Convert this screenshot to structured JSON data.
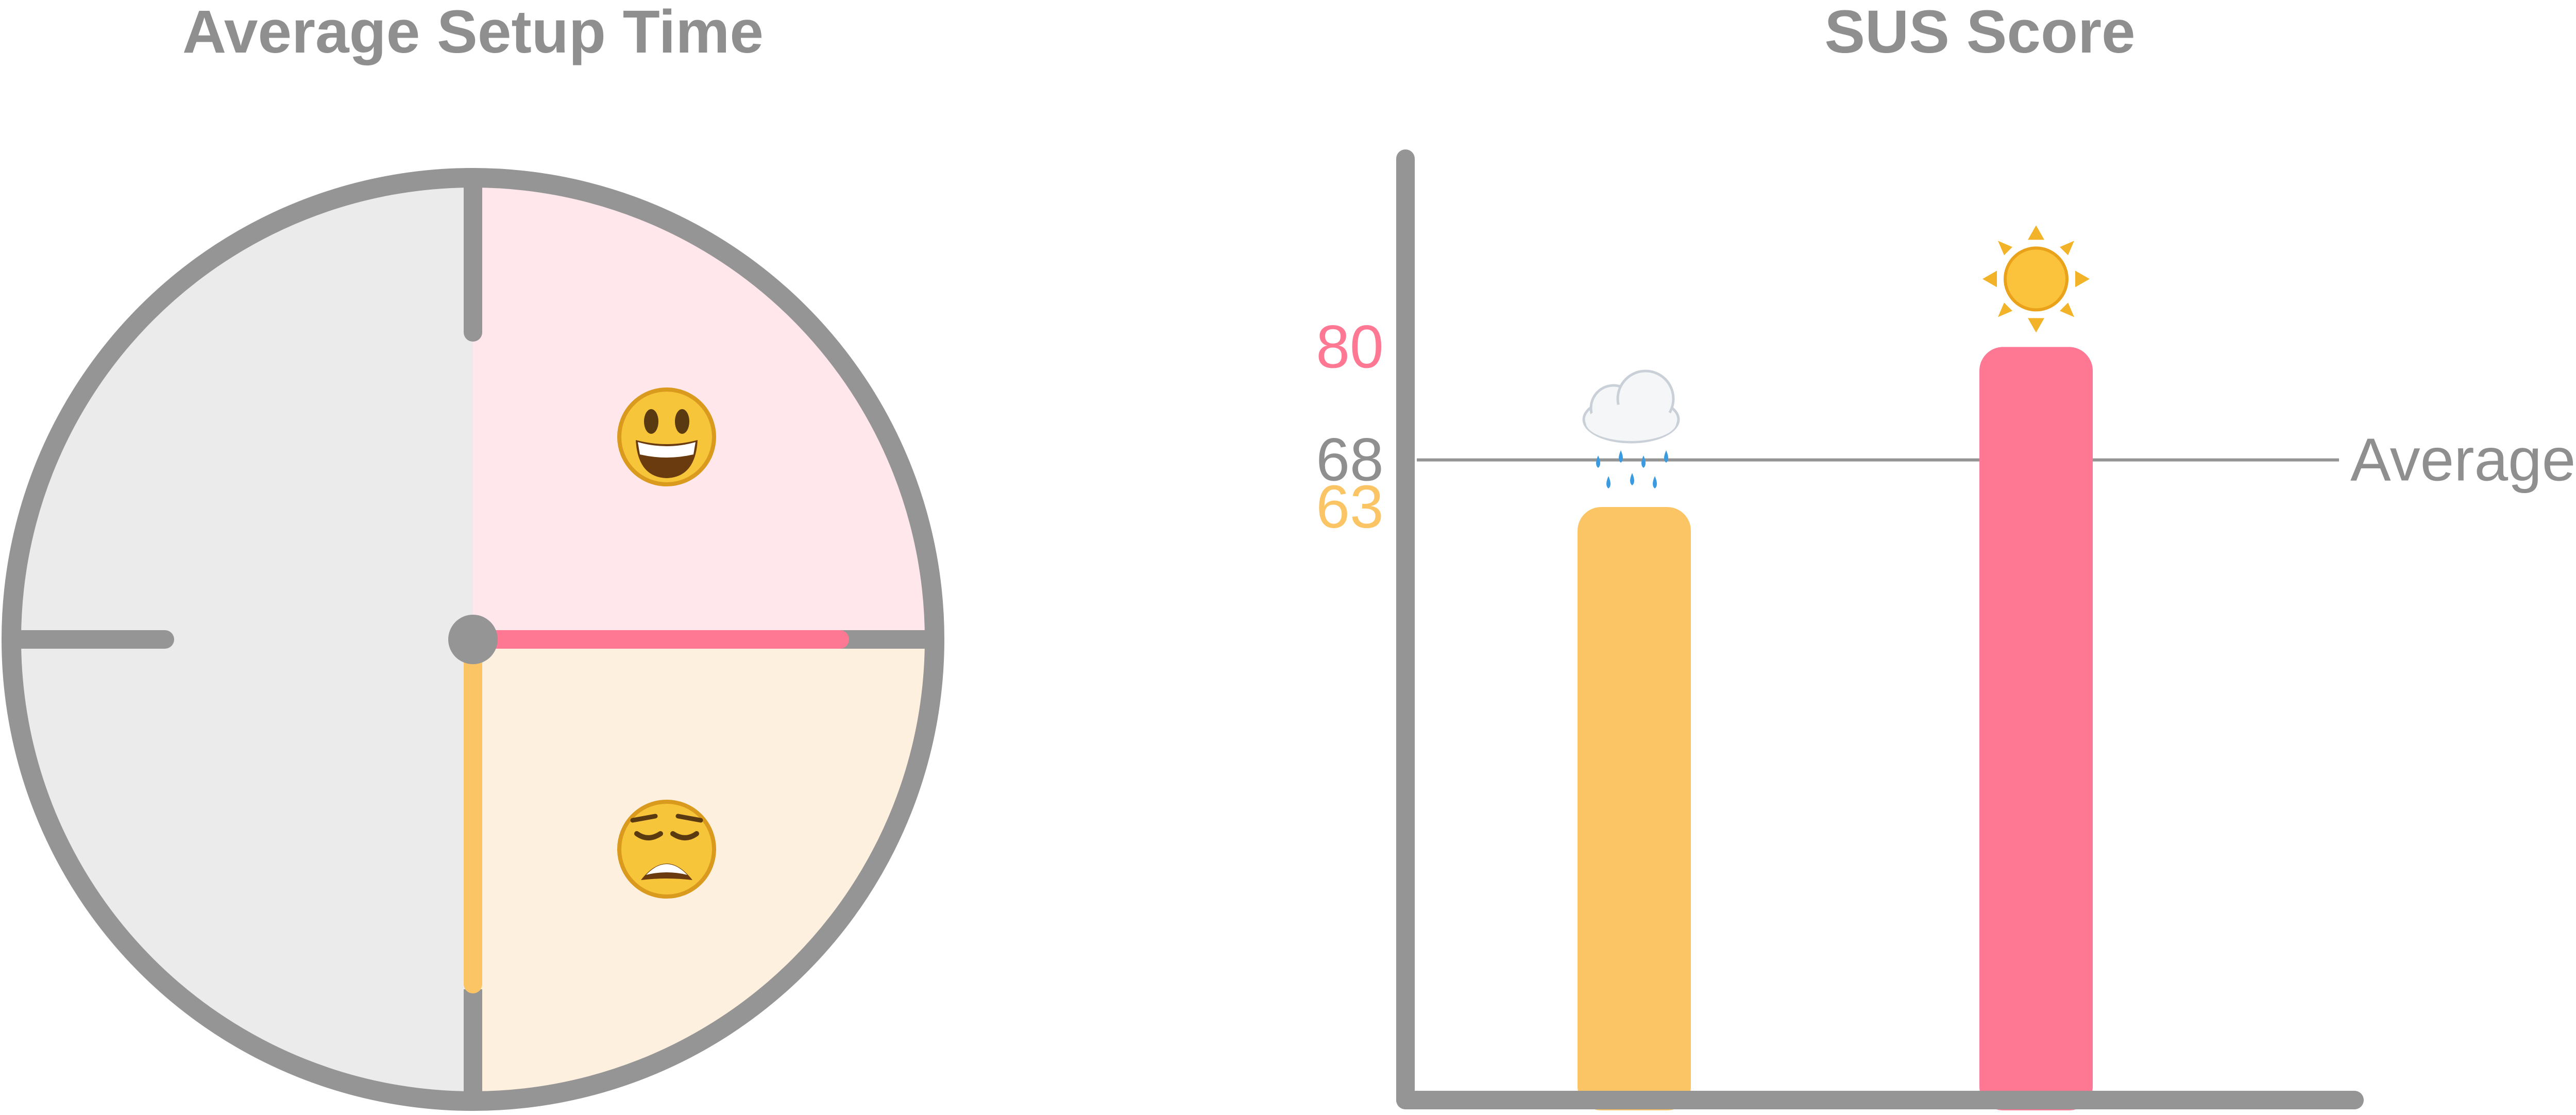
{
  "colors": {
    "axis": "#959595",
    "pink": "#fe7894",
    "orange": "#fbc565",
    "pink_bg": "#ffe7ec",
    "orange_bg": "#fef0df",
    "gray_bg": "#ebebeb",
    "text": "#8f8f8f"
  },
  "chart_data": [
    {
      "type": "pie",
      "title": "Average Setup Time",
      "segments": [
        {
          "value": 25,
          "color": "#ffe7ec",
          "icon": "grinning-face-icon",
          "emoji": "😃"
        },
        {
          "value": 25,
          "color": "#fef0df",
          "icon": "weary-face-icon",
          "emoji": "😩"
        },
        {
          "value": 50,
          "color": "#ebebeb"
        }
      ],
      "hands": [
        {
          "color": "#fe7894",
          "direction": "right",
          "length_fraction": 0.8
        },
        {
          "color": "#fbc565",
          "direction": "down",
          "length_fraction": 0.76
        }
      ]
    },
    {
      "type": "bar",
      "title": "SUS Score",
      "ylim": [
        0,
        100
      ],
      "y_ticks": [
        {
          "value": 80,
          "label": "80",
          "color": "#fe7894"
        },
        {
          "value": 68,
          "label": "68",
          "color": "#8f8f8f"
        },
        {
          "value": 63,
          "label": "63",
          "color": "#fbc565"
        }
      ],
      "bars": [
        {
          "value": 63,
          "color": "#fbc565",
          "icon": "rain-cloud-icon",
          "emoji": "🌧"
        },
        {
          "value": 80,
          "color": "#fe7894",
          "icon": "sun-icon",
          "emoji": "☀"
        }
      ],
      "reference_line": {
        "value": 68,
        "label": "Average"
      }
    }
  ]
}
